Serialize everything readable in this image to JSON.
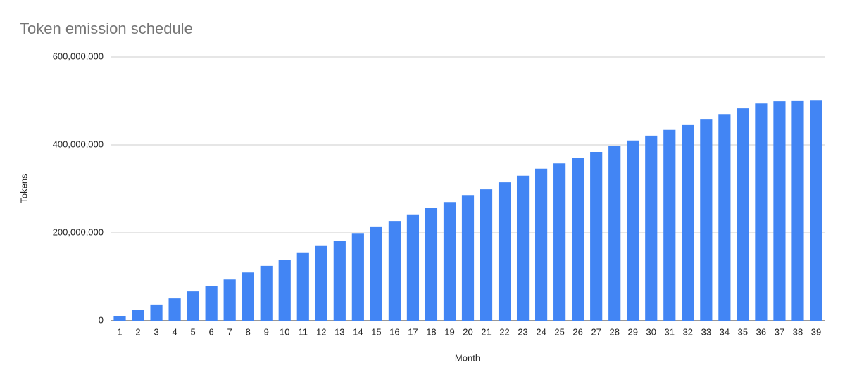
{
  "chart_data": {
    "type": "bar",
    "title": "Token emission schedule",
    "x_label": "Month",
    "y_label": "Tokens",
    "categories": [
      "1",
      "2",
      "3",
      "4",
      "5",
      "6",
      "7",
      "8",
      "9",
      "10",
      "11",
      "12",
      "13",
      "14",
      "15",
      "16",
      "17",
      "18",
      "19",
      "20",
      "21",
      "22",
      "23",
      "24",
      "25",
      "26",
      "27",
      "28",
      "29",
      "30",
      "31",
      "32",
      "33",
      "34",
      "35",
      "36",
      "37",
      "38",
      "39"
    ],
    "values": [
      10000000,
      24000000,
      37000000,
      51000000,
      67000000,
      80000000,
      94000000,
      110000000,
      125000000,
      139000000,
      154000000,
      170000000,
      182000000,
      198000000,
      213000000,
      227000000,
      242000000,
      256000000,
      270000000,
      286000000,
      299000000,
      315000000,
      330000000,
      346000000,
      358000000,
      371000000,
      384000000,
      397000000,
      410000000,
      421000000,
      434000000,
      445000000,
      459000000,
      470000000,
      483000000,
      494000000,
      499000000,
      501000000,
      502000000
    ],
    "color": "#4285f4",
    "ylim": [
      0,
      600000000
    ],
    "yticks": [
      0,
      {
        "value": 200000000,
        "label": "200,000,000"
      },
      {
        "value": 400000000,
        "label": "400,000,000"
      },
      {
        "value": 600000000,
        "label": "600,000,000"
      }
    ],
    "grid": true
  }
}
